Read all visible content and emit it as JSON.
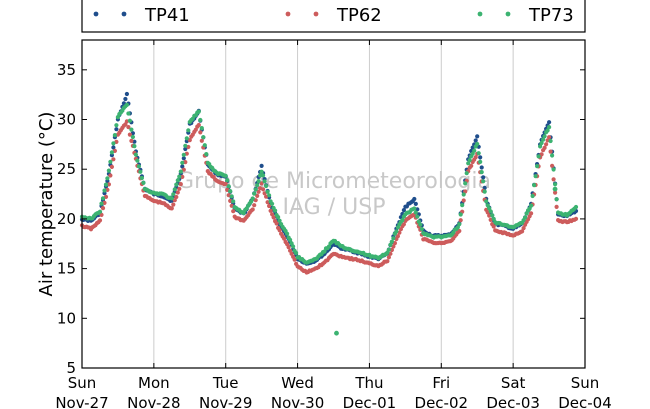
{
  "chart_data": {
    "type": "scatter",
    "title": "",
    "xlabel": "",
    "ylabel": "Air temperature (°C)",
    "ylim": [
      5,
      38
    ],
    "yticks": [
      5,
      10,
      15,
      20,
      25,
      30,
      35
    ],
    "xlim": [
      "2017-11-27 00:00",
      "2017-12-04 00:00"
    ],
    "xtick_labels": [
      {
        "day": "Sun",
        "date": "Nov-27"
      },
      {
        "day": "Mon",
        "date": "Nov-28"
      },
      {
        "day": "Tue",
        "date": "Nov-29"
      },
      {
        "day": "Wed",
        "date": "Nov-30"
      },
      {
        "day": "Thu",
        "date": "Dec-01"
      },
      {
        "day": "Fri",
        "date": "Dec-02"
      },
      {
        "day": "Sat",
        "date": "Dec-03"
      },
      {
        "day": "Sun",
        "date": "Dec-04"
      }
    ],
    "grid": "vertical",
    "legend_position": "top",
    "watermark": [
      "Grupo de Micrometeorologia",
      "IAG / USP"
    ],
    "series": [
      {
        "name": "TP41",
        "color": "#1f4e8c",
        "points": [
          [
            "2017-11-27 00:00",
            20.0
          ],
          [
            "2017-11-27 03:00",
            19.8
          ],
          [
            "2017-11-27 06:00",
            20.6
          ],
          [
            "2017-11-27 09:00",
            24.5
          ],
          [
            "2017-11-27 12:00",
            30.0
          ],
          [
            "2017-11-27 15:00",
            32.5
          ],
          [
            "2017-11-27 18:00",
            26.8
          ],
          [
            "2017-11-27 21:00",
            23.0
          ],
          [
            "2017-11-28 00:00",
            22.5
          ],
          [
            "2017-11-28 03:00",
            22.3
          ],
          [
            "2017-11-28 06:00",
            21.8
          ],
          [
            "2017-11-28 09:00",
            24.5
          ],
          [
            "2017-11-28 12:00",
            29.5
          ],
          [
            "2017-11-28 15:00",
            30.8
          ],
          [
            "2017-11-28 18:00",
            25.5
          ],
          [
            "2017-11-28 21:00",
            24.5
          ],
          [
            "2017-11-29 00:00",
            24.3
          ],
          [
            "2017-11-29 03:00",
            21.0
          ],
          [
            "2017-11-29 06:00",
            20.5
          ],
          [
            "2017-11-29 09:00",
            22.0
          ],
          [
            "2017-11-29 12:00",
            25.3
          ],
          [
            "2017-11-29 15:00",
            21.5
          ],
          [
            "2017-11-29 18:00",
            19.5
          ],
          [
            "2017-11-29 21:00",
            18.0
          ],
          [
            "2017-11-30 00:00",
            16.0
          ],
          [
            "2017-11-30 03:00",
            15.5
          ],
          [
            "2017-11-30 06:00",
            15.8
          ],
          [
            "2017-11-30 09:00",
            16.5
          ],
          [
            "2017-11-30 12:00",
            17.5
          ],
          [
            "2017-11-30 15:00",
            17.0
          ],
          [
            "2017-11-30 18:00",
            16.8
          ],
          [
            "2017-11-30 21:00",
            16.5
          ],
          [
            "2017-12-01 00:00",
            16.2
          ],
          [
            "2017-12-01 03:00",
            16.0
          ],
          [
            "2017-12-01 06:00",
            16.5
          ],
          [
            "2017-12-01 09:00",
            19.0
          ],
          [
            "2017-12-01 12:00",
            21.2
          ],
          [
            "2017-12-01 15:00",
            22.0
          ],
          [
            "2017-12-01 18:00",
            18.8
          ],
          [
            "2017-12-01 21:00",
            18.3
          ],
          [
            "2017-12-02 00:00",
            18.3
          ],
          [
            "2017-12-02 03:00",
            18.4
          ],
          [
            "2017-12-02 06:00",
            19.5
          ],
          [
            "2017-12-02 09:00",
            26.0
          ],
          [
            "2017-12-02 12:00",
            28.3
          ],
          [
            "2017-12-02 15:00",
            22.0
          ],
          [
            "2017-12-02 18:00",
            19.5
          ],
          [
            "2017-12-02 21:00",
            19.3
          ],
          [
            "2017-12-03 00:00",
            19.0
          ],
          [
            "2017-12-03 03:00",
            19.5
          ],
          [
            "2017-12-03 06:00",
            21.5
          ],
          [
            "2017-12-03 09:00",
            27.5
          ],
          [
            "2017-12-03 12:00",
            29.8
          ],
          [
            "2017-12-03 15:00",
            20.5
          ],
          [
            "2017-12-03 18:00",
            20.3
          ],
          [
            "2017-12-03 21:00",
            20.8
          ]
        ]
      },
      {
        "name": "TP62",
        "color": "#cd5c5c",
        "points": [
          [
            "2017-11-27 00:00",
            19.3
          ],
          [
            "2017-11-27 03:00",
            19.0
          ],
          [
            "2017-11-27 06:00",
            19.8
          ],
          [
            "2017-11-27 09:00",
            23.5
          ],
          [
            "2017-11-27 12:00",
            28.5
          ],
          [
            "2017-11-27 15:00",
            29.8
          ],
          [
            "2017-11-27 18:00",
            26.0
          ],
          [
            "2017-11-27 21:00",
            22.3
          ],
          [
            "2017-11-28 00:00",
            21.8
          ],
          [
            "2017-11-28 03:00",
            21.6
          ],
          [
            "2017-11-28 06:00",
            21.0
          ],
          [
            "2017-11-28 09:00",
            23.5
          ],
          [
            "2017-11-28 12:00",
            28.0
          ],
          [
            "2017-11-28 15:00",
            29.5
          ],
          [
            "2017-11-28 18:00",
            24.8
          ],
          [
            "2017-11-28 21:00",
            23.8
          ],
          [
            "2017-11-29 00:00",
            23.5
          ],
          [
            "2017-11-29 03:00",
            20.2
          ],
          [
            "2017-11-29 06:00",
            19.8
          ],
          [
            "2017-11-29 09:00",
            21.0
          ],
          [
            "2017-11-29 12:00",
            23.5
          ],
          [
            "2017-11-29 15:00",
            20.8
          ],
          [
            "2017-11-29 18:00",
            18.8
          ],
          [
            "2017-11-29 21:00",
            17.2
          ],
          [
            "2017-11-30 00:00",
            15.2
          ],
          [
            "2017-11-30 03:00",
            14.6
          ],
          [
            "2017-11-30 06:00",
            15.0
          ],
          [
            "2017-11-30 09:00",
            15.6
          ],
          [
            "2017-11-30 12:00",
            16.5
          ],
          [
            "2017-11-30 15:00",
            16.2
          ],
          [
            "2017-11-30 18:00",
            16.0
          ],
          [
            "2017-11-30 21:00",
            15.8
          ],
          [
            "2017-12-01 00:00",
            15.5
          ],
          [
            "2017-12-01 03:00",
            15.3
          ],
          [
            "2017-12-01 06:00",
            15.8
          ],
          [
            "2017-12-01 09:00",
            18.0
          ],
          [
            "2017-12-01 12:00",
            19.8
          ],
          [
            "2017-12-01 15:00",
            20.5
          ],
          [
            "2017-12-01 18:00",
            18.0
          ],
          [
            "2017-12-01 21:00",
            17.6
          ],
          [
            "2017-12-02 00:00",
            17.6
          ],
          [
            "2017-12-02 03:00",
            17.7
          ],
          [
            "2017-12-02 06:00",
            18.8
          ],
          [
            "2017-12-02 09:00",
            24.8
          ],
          [
            "2017-12-02 12:00",
            26.5
          ],
          [
            "2017-12-02 15:00",
            21.0
          ],
          [
            "2017-12-02 18:00",
            18.8
          ],
          [
            "2017-12-02 21:00",
            18.6
          ],
          [
            "2017-12-03 00:00",
            18.3
          ],
          [
            "2017-12-03 03:00",
            18.8
          ],
          [
            "2017-12-03 06:00",
            20.5
          ],
          [
            "2017-12-03 09:00",
            26.2
          ],
          [
            "2017-12-03 12:00",
            28.2
          ],
          [
            "2017-12-03 15:00",
            19.8
          ],
          [
            "2017-12-03 18:00",
            19.7
          ],
          [
            "2017-12-03 21:00",
            20.0
          ]
        ]
      },
      {
        "name": "TP73",
        "color": "#3cb371",
        "points": [
          [
            "2017-11-27 00:00",
            20.2
          ],
          [
            "2017-11-27 03:00",
            20.0
          ],
          [
            "2017-11-27 06:00",
            20.8
          ],
          [
            "2017-11-27 09:00",
            24.8
          ],
          [
            "2017-11-27 12:00",
            30.3
          ],
          [
            "2017-11-27 15:00",
            31.5
          ],
          [
            "2017-11-27 18:00",
            26.5
          ],
          [
            "2017-11-27 21:00",
            23.0
          ],
          [
            "2017-11-28 00:00",
            22.6
          ],
          [
            "2017-11-28 03:00",
            22.5
          ],
          [
            "2017-11-28 06:00",
            22.0
          ],
          [
            "2017-11-28 09:00",
            24.8
          ],
          [
            "2017-11-28 12:00",
            29.8
          ],
          [
            "2017-11-28 15:00",
            30.8
          ],
          [
            "2017-11-28 18:00",
            25.6
          ],
          [
            "2017-11-28 21:00",
            24.6
          ],
          [
            "2017-11-29 00:00",
            24.4
          ],
          [
            "2017-11-29 03:00",
            21.2
          ],
          [
            "2017-11-29 06:00",
            20.6
          ],
          [
            "2017-11-29 09:00",
            22.0
          ],
          [
            "2017-11-29 12:00",
            24.8
          ],
          [
            "2017-11-29 15:00",
            21.8
          ],
          [
            "2017-11-29 18:00",
            19.8
          ],
          [
            "2017-11-29 21:00",
            18.2
          ],
          [
            "2017-11-30 00:00",
            16.2
          ],
          [
            "2017-11-30 03:00",
            15.6
          ],
          [
            "2017-11-30 06:00",
            15.9
          ],
          [
            "2017-11-30 09:00",
            16.8
          ],
          [
            "2017-11-30 12:00",
            17.8
          ],
          [
            "2017-11-30 15:00",
            17.2
          ],
          [
            "2017-11-30 18:00",
            16.9
          ],
          [
            "2017-11-30 21:00",
            16.6
          ],
          [
            "2017-12-01 00:00",
            16.3
          ],
          [
            "2017-12-01 03:00",
            16.1
          ],
          [
            "2017-12-01 06:00",
            16.6
          ],
          [
            "2017-12-01 09:00",
            18.8
          ],
          [
            "2017-12-01 12:00",
            20.5
          ],
          [
            "2017-12-01 15:00",
            21.0
          ],
          [
            "2017-12-01 18:00",
            18.6
          ],
          [
            "2017-12-01 21:00",
            18.2
          ],
          [
            "2017-12-02 00:00",
            18.2
          ],
          [
            "2017-12-02 03:00",
            18.3
          ],
          [
            "2017-12-02 06:00",
            19.4
          ],
          [
            "2017-12-02 09:00",
            25.6
          ],
          [
            "2017-12-02 12:00",
            27.6
          ],
          [
            "2017-12-02 15:00",
            21.8
          ],
          [
            "2017-12-02 18:00",
            19.6
          ],
          [
            "2017-12-02 21:00",
            19.4
          ],
          [
            "2017-12-03 00:00",
            19.1
          ],
          [
            "2017-12-03 03:00",
            19.6
          ],
          [
            "2017-12-03 06:00",
            21.4
          ],
          [
            "2017-12-03 09:00",
            27.3
          ],
          [
            "2017-12-03 12:00",
            29.3
          ],
          [
            "2017-12-03 15:00",
            20.6
          ],
          [
            "2017-12-03 18:00",
            20.4
          ],
          [
            "2017-12-03 21:00",
            21.2
          ]
        ],
        "outliers": [
          [
            "2017-11-30 13:00",
            8.5
          ],
          [
            "2017-12-03 14:00",
            23.0
          ]
        ]
      }
    ]
  }
}
